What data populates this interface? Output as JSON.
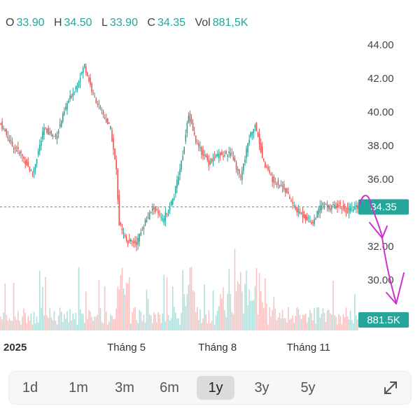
{
  "ohlc": {
    "o_label": "O",
    "o_value": "33.90",
    "h_label": "H",
    "h_value": "34.50",
    "l_label": "L",
    "l_value": "33.90",
    "c_label": "C",
    "c_value": "34.35",
    "vol_label": "Vol",
    "vol_value": "881,5K"
  },
  "colors": {
    "up": "#26a69a",
    "down": "#ef5350",
    "vol_up": "#b2dfdb",
    "vol_down": "#f8c3c2",
    "annotation": "#cc33cc"
  },
  "chart_data": {
    "type": "candlestick",
    "y_ticks": [
      "44.00",
      "42.00",
      "40.00",
      "38.00",
      "36.00",
      "34.00",
      "32.00",
      "30.00"
    ],
    "ylim": [
      29.5,
      44.5
    ],
    "x_ticks": [
      {
        "label": "2025",
        "index": 10
      },
      {
        "label": "Tháng 5",
        "index": 87
      },
      {
        "label": "Tháng 8",
        "index": 150
      },
      {
        "label": "Tháng 11",
        "index": 213
      }
    ],
    "current_price": 34.35,
    "price_label": "34.35",
    "volume_label": "881.5K",
    "close_path": [
      {
        "i": 0,
        "c": 39.3
      },
      {
        "i": 8,
        "c": 38.0
      },
      {
        "i": 14,
        "c": 37.5
      },
      {
        "i": 22,
        "c": 36.3
      },
      {
        "i": 30,
        "c": 39.0
      },
      {
        "i": 38,
        "c": 38.5
      },
      {
        "i": 46,
        "c": 40.5
      },
      {
        "i": 52,
        "c": 41.5
      },
      {
        "i": 58,
        "c": 42.8
      },
      {
        "i": 64,
        "c": 41.0
      },
      {
        "i": 70,
        "c": 40.0
      },
      {
        "i": 76,
        "c": 39.0
      },
      {
        "i": 80,
        "c": 36.5
      },
      {
        "i": 82,
        "c": 33.3
      },
      {
        "i": 88,
        "c": 32.3
      },
      {
        "i": 94,
        "c": 32.2
      },
      {
        "i": 100,
        "c": 33.5
      },
      {
        "i": 106,
        "c": 34.3
      },
      {
        "i": 112,
        "c": 33.5
      },
      {
        "i": 120,
        "c": 35.0
      },
      {
        "i": 126,
        "c": 37.5
      },
      {
        "i": 130,
        "c": 39.8
      },
      {
        "i": 136,
        "c": 38.0
      },
      {
        "i": 144,
        "c": 37.0
      },
      {
        "i": 152,
        "c": 37.5
      },
      {
        "i": 160,
        "c": 37.5
      },
      {
        "i": 166,
        "c": 36.0
      },
      {
        "i": 172,
        "c": 38.5
      },
      {
        "i": 176,
        "c": 39.3
      },
      {
        "i": 182,
        "c": 37.0
      },
      {
        "i": 188,
        "c": 36.0
      },
      {
        "i": 196,
        "c": 35.5
      },
      {
        "i": 204,
        "c": 34.2
      },
      {
        "i": 210,
        "c": 33.8
      },
      {
        "i": 216,
        "c": 33.4
      },
      {
        "i": 222,
        "c": 34.5
      },
      {
        "i": 228,
        "c": 34.3
      },
      {
        "i": 234,
        "c": 34.5
      },
      {
        "i": 240,
        "c": 34.1
      },
      {
        "i": 247,
        "c": 34.35
      }
    ]
  },
  "timeframes": [
    "1d",
    "1m",
    "3m",
    "6m",
    "1y",
    "3y",
    "5y"
  ],
  "active_timeframe": "1y",
  "icons": {
    "expand": "expand-arrows-icon"
  }
}
